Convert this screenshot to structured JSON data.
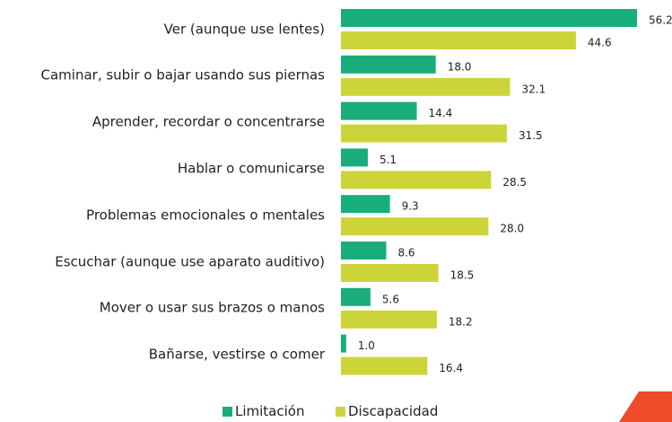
{
  "chart_data": {
    "type": "bar",
    "orientation": "horizontal",
    "categories": [
      "Ver (aunque use lentes)",
      "Caminar, subir o bajar usando sus piernas",
      "Aprender, recordar o concentrarse",
      "Hablar o comunicarse",
      "Problemas emocionales o mentales",
      "Escuchar (aunque use aparato auditivo)",
      "Mover o usar sus brazos o manos",
      "Bañarse, vestirse o comer"
    ],
    "series": [
      {
        "name": "Limitación",
        "color": "#19ad7b",
        "values": [
          56.2,
          18.0,
          14.4,
          5.1,
          9.3,
          8.6,
          5.6,
          1.0
        ],
        "value_labels": [
          "56.2",
          "18.0",
          "14.4",
          "5.1",
          "9.3",
          "8.6",
          "5.6",
          "1.0"
        ]
      },
      {
        "name": "Discapacidad",
        "color": "#cdd43a",
        "values": [
          44.6,
          32.1,
          31.5,
          28.5,
          28.0,
          18.5,
          18.2,
          16.4
        ],
        "value_labels": [
          "44.6",
          "32.1",
          "31.5",
          "28.5",
          "28.0",
          "18.5",
          "18.2",
          "16.4"
        ]
      }
    ]
  }
}
